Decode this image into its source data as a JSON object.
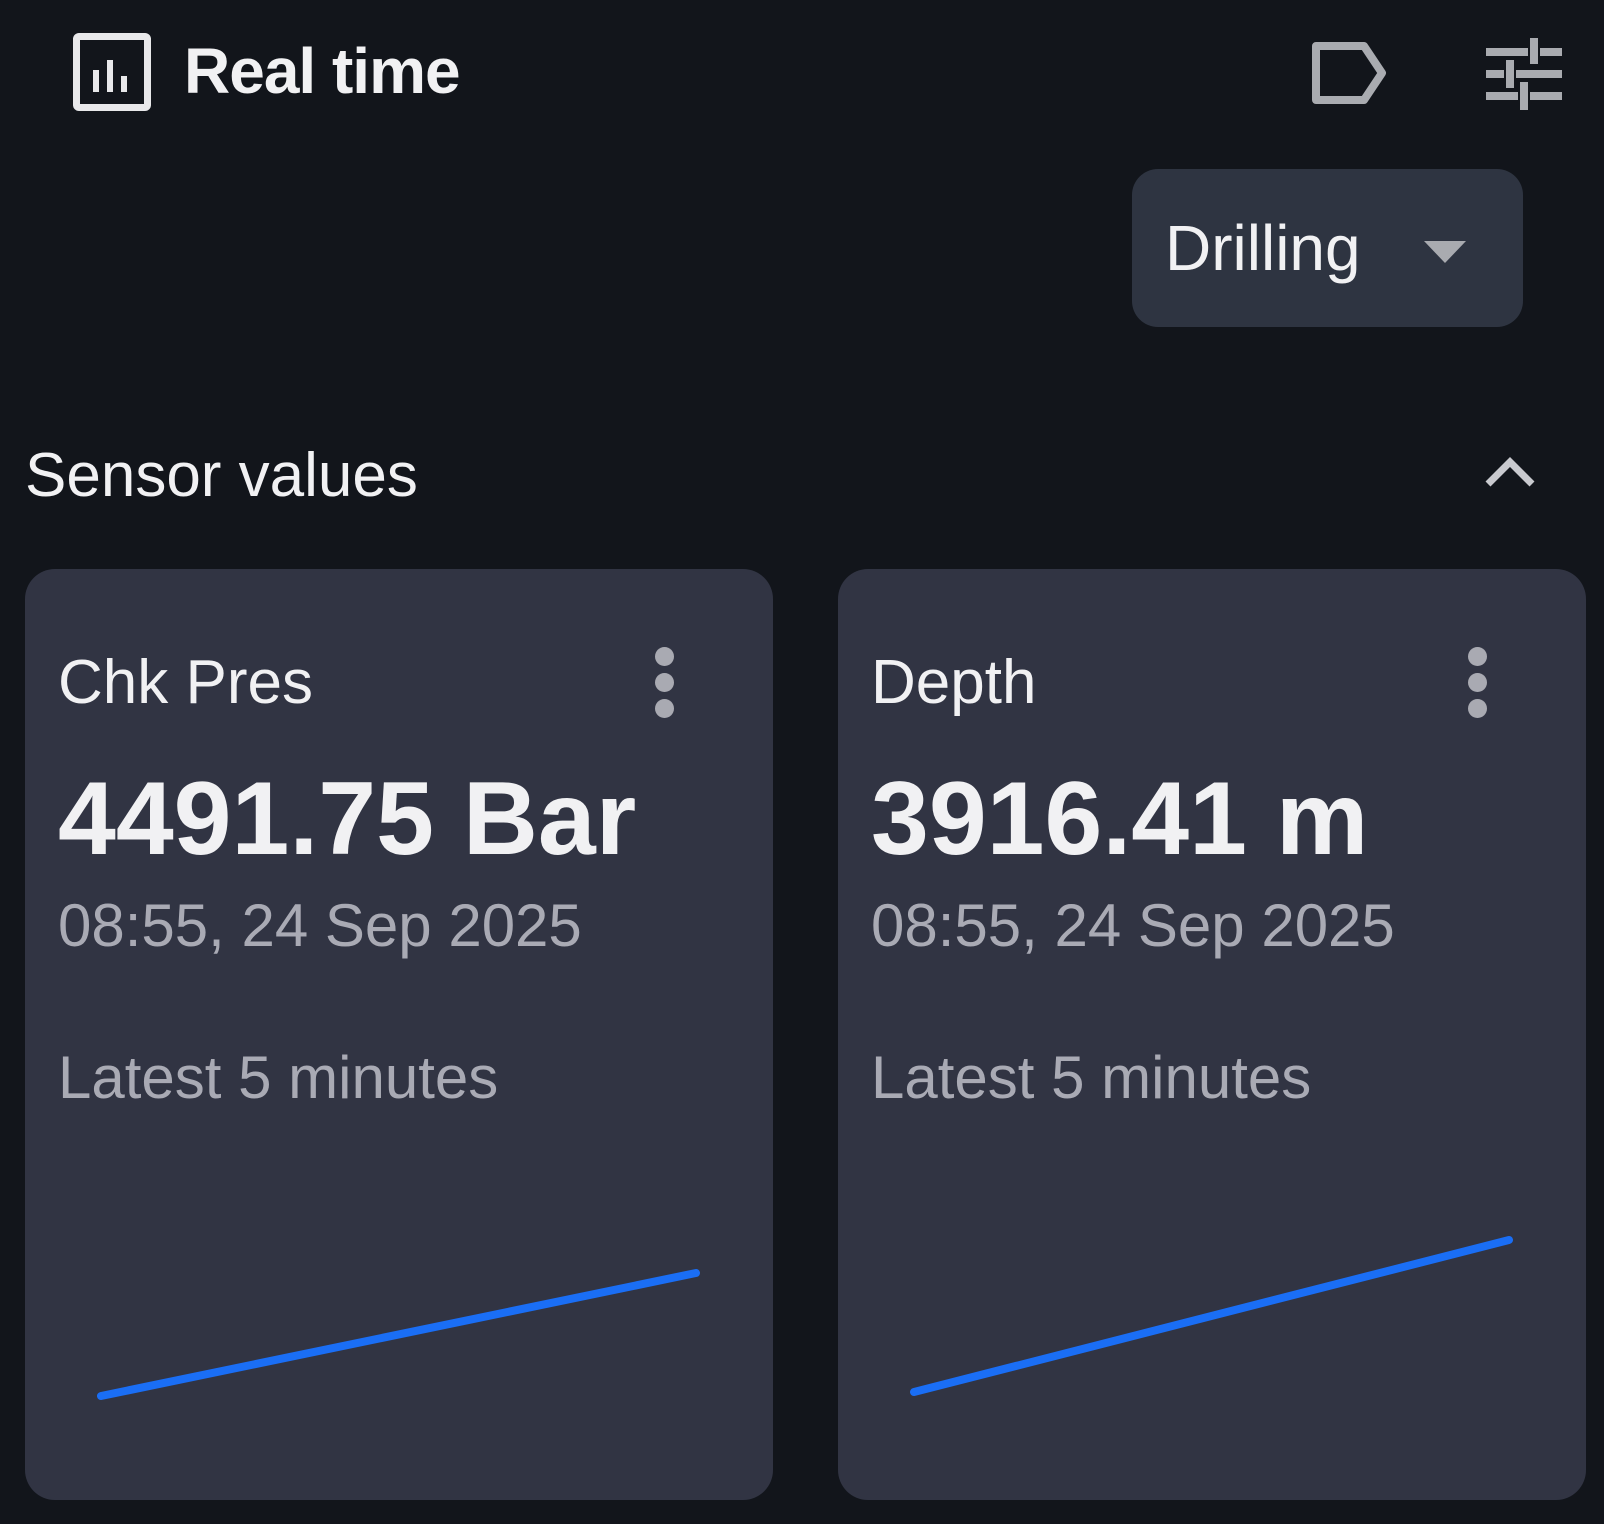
{
  "header": {
    "title": "Real time",
    "icons": {
      "title": "bar-chart-icon",
      "label": "label-tag-icon",
      "filters": "tune-sliders-icon"
    }
  },
  "mode_select": {
    "value": "Drilling",
    "icon": "caret-down-icon"
  },
  "section": {
    "title": "Sensor values",
    "expanded": true,
    "icon": "chevron-up-icon"
  },
  "cards": [
    {
      "name": "Chk Pres",
      "value": "4491.75 Bar",
      "timestamp": "08:55, 24 Sep 2025",
      "range": "Latest 5 minutes",
      "trend": "increasing"
    },
    {
      "name": "Depth",
      "value": "3916.41 m",
      "timestamp": "08:55, 24 Sep 2025",
      "range": "Latest 5 minutes",
      "trend": "increasing"
    }
  ],
  "colors": {
    "background": "#12151b",
    "card": "#313443",
    "sparkline": "#1a6ef5",
    "secondary_text": "#a9aab4"
  }
}
